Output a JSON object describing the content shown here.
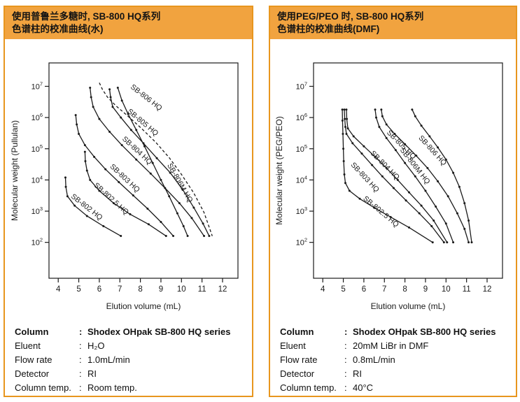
{
  "panels": [
    {
      "header": {
        "line1": "使用普鲁兰多糖时, SB-800 HQ系列",
        "line2": "色谱柱的校准曲线(水)"
      },
      "table": {
        "rows": [
          {
            "label": "Column",
            "value": "Shodex OHpak SB-800 HQ series",
            "bold": true
          },
          {
            "label": "Eluent",
            "value": "H₂O",
            "bold": false
          },
          {
            "label": "Flow rate",
            "value": "1.0mL/min",
            "bold": false
          },
          {
            "label": "Detector",
            "value": "RI",
            "bold": false
          },
          {
            "label": "Column temp.",
            "value": "Room temp.",
            "bold": false
          }
        ]
      }
    },
    {
      "header": {
        "line1": "使用PEG/PEO 时, SB-800 HQ系列",
        "line2": "色谱柱的校准曲线(DMF)"
      },
      "table": {
        "rows": [
          {
            "label": "Column",
            "value": "Shodex OHpak SB-800 HQ series",
            "bold": true
          },
          {
            "label": "Eluent",
            "value": "20mM LiBr in DMF",
            "bold": false
          },
          {
            "label": "Flow rate",
            "value": "0.8mL/min",
            "bold": false
          },
          {
            "label": "Detector",
            "value": "RI",
            "bold": false
          },
          {
            "label": "Column temp.",
            "value": "40°C",
            "bold": false
          }
        ]
      }
    }
  ],
  "chart_data": [
    {
      "type": "line",
      "title": "",
      "xlabel": "Elution volume (mL)",
      "ylabel": "Molecular weight (Pullulan)",
      "x_ticks": [
        4,
        5,
        6,
        7,
        8,
        9,
        10,
        11,
        12
      ],
      "y_tick_exponents": [
        2,
        3,
        4,
        5,
        6,
        7
      ],
      "xlim": [
        3.55,
        12.75
      ],
      "ylim": [
        100,
        10000000
      ],
      "log_y": true,
      "grid": false,
      "legend_position": "labels-on-curves",
      "series": [
        {
          "name": "SB-802 HQ",
          "dashed": false,
          "label_at": [
            4.6,
            2800
          ],
          "label_angle": 38,
          "points": [
            [
              4.35,
              12000
            ],
            [
              4.37,
              6000
            ],
            [
              4.45,
              3000
            ],
            [
              4.8,
              1500
            ],
            [
              5.4,
              700
            ],
            [
              6.2,
              330
            ],
            [
              7.05,
              160
            ]
          ]
        },
        {
          "name": "SB-802.5 HQ",
          "dashed": false,
          "label_at": [
            5.72,
            6500
          ],
          "label_angle": 42,
          "points": [
            [
              5.3,
              80000
            ],
            [
              5.32,
              40000
            ],
            [
              5.4,
              20000
            ],
            [
              5.55,
              10000
            ],
            [
              6.0,
              4500
            ],
            [
              6.7,
              1800
            ],
            [
              7.5,
              800
            ],
            [
              8.4,
              380
            ],
            [
              9.25,
              160
            ]
          ]
        },
        {
          "name": "SB-803 HQ",
          "dashed": false,
          "label_at": [
            6.5,
            26000
          ],
          "label_angle": 43,
          "points": [
            [
              4.85,
              1200000
            ],
            [
              4.9,
              600000
            ],
            [
              5.0,
              300000
            ],
            [
              5.3,
              130000
            ],
            [
              5.75,
              55000
            ],
            [
              6.3,
              22000
            ],
            [
              6.95,
              8500
            ],
            [
              7.65,
              3200
            ],
            [
              8.35,
              1200
            ],
            [
              9.0,
              450
            ],
            [
              9.6,
              160
            ]
          ]
        },
        {
          "name": "SB-804 HQ",
          "dashed": false,
          "label_at": [
            7.1,
            200000
          ],
          "label_angle": 43,
          "points": [
            [
              5.55,
              9000000
            ],
            [
              5.6,
              4500000
            ],
            [
              5.7,
              2200000
            ],
            [
              6.0,
              900000
            ],
            [
              6.5,
              350000
            ],
            [
              7.1,
              130000
            ],
            [
              7.8,
              45000
            ],
            [
              8.5,
              16000
            ],
            [
              9.2,
              5500
            ],
            [
              9.9,
              1800
            ],
            [
              10.5,
              600
            ],
            [
              11.1,
              160
            ]
          ]
        },
        {
          "name": "SB-805 HQ",
          "dashed": false,
          "label_at": [
            7.35,
            1500000
          ],
          "label_angle": 40,
          "points": [
            [
              6.5,
              8000000
            ],
            [
              6.55,
              4500000
            ],
            [
              6.65,
              2200000
            ],
            [
              7.05,
              1000000
            ],
            [
              7.55,
              400000
            ],
            [
              8.15,
              150000
            ],
            [
              8.8,
              50000
            ],
            [
              9.45,
              17000
            ],
            [
              10.05,
              5000
            ],
            [
              10.6,
              1300
            ],
            [
              11.05,
              400
            ],
            [
              11.35,
              160
            ]
          ]
        },
        {
          "name": "SB-806 HQ",
          "dashed": true,
          "label_at": [
            7.5,
            9000000
          ],
          "label_angle": 38,
          "points": [
            [
              6.0,
              13000000
            ],
            [
              6.15,
              8000000
            ],
            [
              6.4,
              4500000
            ],
            [
              6.8,
              2400000
            ],
            [
              7.4,
              1100000
            ],
            [
              8.05,
              450000
            ],
            [
              8.75,
              160000
            ],
            [
              9.4,
              52000
            ],
            [
              10.0,
              15000
            ],
            [
              10.6,
              3800
            ],
            [
              11.1,
              900
            ],
            [
              11.5,
              160
            ]
          ]
        },
        {
          "name": "SB-806M HQ",
          "dashed": false,
          "label_at": [
            9.3,
            30000
          ],
          "label_angle": 60,
          "points": [
            [
              6.9,
              9000000
            ],
            [
              7.1,
              3500000
            ],
            [
              7.4,
              1300000
            ],
            [
              7.8,
              400000
            ],
            [
              8.2,
              120000
            ],
            [
              8.6,
              35000
            ],
            [
              9.0,
              10000
            ],
            [
              9.4,
              3000
            ],
            [
              9.8,
              850
            ],
            [
              10.1,
              330
            ],
            [
              10.3,
              160
            ]
          ]
        }
      ]
    },
    {
      "type": "line",
      "title": "",
      "xlabel": "Elution volume (mL)",
      "ylabel": "Molecular weight (PEG/PEO)",
      "x_ticks": [
        4,
        5,
        6,
        7,
        8,
        9,
        10,
        11,
        12
      ],
      "y_tick_exponents": [
        2,
        3,
        4,
        5,
        6,
        7
      ],
      "xlim": [
        3.55,
        12.75
      ],
      "ylim": [
        100,
        10000000
      ],
      "log_y": true,
      "grid": false,
      "legend_position": "labels-on-curves",
      "series": [
        {
          "name": "SB-802.5 HQ",
          "dashed": false,
          "label_at": [
            5.95,
            2400
          ],
          "label_angle": 40,
          "points": [
            [
              4.95,
              1800000
            ],
            [
              4.96,
              800000
            ],
            [
              4.98,
              300000
            ],
            [
              5.0,
              100000
            ],
            [
              5.02,
              40000
            ],
            [
              5.05,
              15000
            ],
            [
              5.1,
              8000
            ],
            [
              5.3,
              4500
            ],
            [
              5.8,
              2500
            ],
            [
              6.5,
              1300
            ],
            [
              7.3,
              650
            ],
            [
              8.2,
              300
            ],
            [
              9.35,
              100
            ]
          ]
        },
        {
          "name": "SB-803 HQ",
          "dashed": false,
          "label_at": [
            5.35,
            30000
          ],
          "label_angle": 47,
          "points": [
            [
              5.05,
              1800000
            ],
            [
              5.07,
              900000
            ],
            [
              5.1,
              500000
            ],
            [
              5.15,
              300000
            ],
            [
              5.45,
              150000
            ],
            [
              5.9,
              70000
            ],
            [
              6.4,
              30000
            ],
            [
              6.9,
              13000
            ],
            [
              7.45,
              5500
            ],
            [
              8.05,
              2200
            ],
            [
              8.7,
              850
            ],
            [
              9.3,
              330
            ],
            [
              9.9,
              100
            ]
          ]
        },
        {
          "name": "SB-804 HQ",
          "dashed": false,
          "label_at": [
            6.3,
            70000
          ],
          "label_angle": 45,
          "points": [
            [
              5.15,
              1800000
            ],
            [
              5.17,
              900000
            ],
            [
              5.22,
              450000
            ],
            [
              5.5,
              250000
            ],
            [
              6.0,
              120000
            ],
            [
              6.55,
              55000
            ],
            [
              7.1,
              24000
            ],
            [
              7.65,
              10000
            ],
            [
              8.2,
              4000
            ],
            [
              8.8,
              1500
            ],
            [
              9.4,
              500
            ],
            [
              10.05,
              100
            ]
          ]
        },
        {
          "name": "SB-806M HQ",
          "dashed": false,
          "label_at": [
            7.75,
            90000
          ],
          "label_angle": 52,
          "points": [
            [
              6.55,
              1800000
            ],
            [
              6.6,
              1000000
            ],
            [
              6.75,
              500000
            ],
            [
              7.1,
              220000
            ],
            [
              7.55,
              90000
            ],
            [
              8.0,
              35000
            ],
            [
              8.5,
              13000
            ],
            [
              9.0,
              4500
            ],
            [
              9.5,
              1400
            ],
            [
              10.0,
              400
            ],
            [
              10.35,
              100
            ]
          ]
        },
        {
          "name": "SB-805 HQ",
          "dashed": false,
          "label_at": [
            7.1,
            320000
          ],
          "label_angle": 45,
          "points": [
            [
              6.85,
              1800000
            ],
            [
              6.9,
              1100000
            ],
            [
              7.1,
              600000
            ],
            [
              7.5,
              300000
            ],
            [
              8.0,
              140000
            ],
            [
              8.55,
              60000
            ],
            [
              9.1,
              24000
            ],
            [
              9.6,
              9000
            ],
            [
              10.1,
              3000
            ],
            [
              10.55,
              850
            ],
            [
              10.9,
              270
            ],
            [
              11.1,
              100
            ]
          ]
        },
        {
          "name": "SB-806 HQ",
          "dashed": false,
          "label_at": [
            8.65,
            220000
          ],
          "label_angle": 48,
          "points": [
            [
              8.35,
              1800000
            ],
            [
              8.5,
              1100000
            ],
            [
              8.8,
              550000
            ],
            [
              9.2,
              250000
            ],
            [
              9.6,
              110000
            ],
            [
              10.0,
              45000
            ],
            [
              10.35,
              17000
            ],
            [
              10.65,
              6000
            ],
            [
              10.9,
              1800
            ],
            [
              11.1,
              500
            ],
            [
              11.25,
              100
            ]
          ]
        }
      ]
    }
  ],
  "colors": {
    "panel_orange": "#f1a33f",
    "panel_border": "#e8961e",
    "ink": "#1a1a1a"
  }
}
